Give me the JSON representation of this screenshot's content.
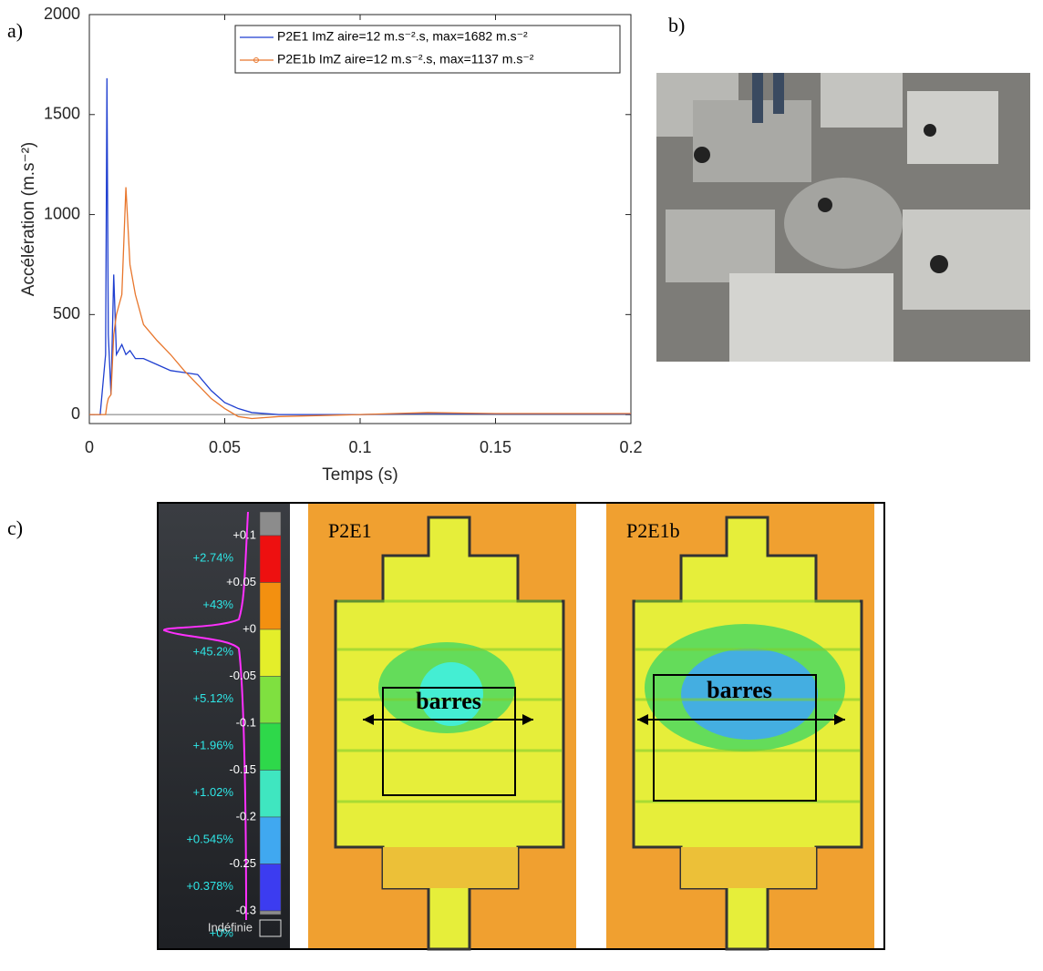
{
  "labels": {
    "a": "a)",
    "b": "b)",
    "c": "c)"
  },
  "chart_data": {
    "type": "line",
    "xlabel": "Temps (s)",
    "ylabel": "Accélération (m.s⁻²)",
    "x": [
      0,
      0.004,
      0.006,
      0.0065,
      0.007,
      0.008,
      0.009,
      0.01,
      0.012,
      0.0135,
      0.015,
      0.017,
      0.02,
      0.025,
      0.03,
      0.035,
      0.04,
      0.045,
      0.05,
      0.055,
      0.06,
      0.07,
      0.1,
      0.125,
      0.15,
      0.2
    ],
    "series": [
      {
        "name": "P2E1 ImZ     aire=12 m.s⁻².s, max=1682 m.s⁻²",
        "color": "#1f3fd0",
        "values": [
          0,
          0,
          300,
          1682,
          400,
          100,
          700,
          300,
          350,
          300,
          320,
          280,
          280,
          250,
          220,
          210,
          200,
          120,
          60,
          30,
          10,
          0,
          0,
          5,
          3,
          3
        ]
      },
      {
        "name": "P2E1b ImZ     aire=12 m.s⁻².s, max=1137 m.s⁻²",
        "color": "#e8762c",
        "values": [
          0,
          0,
          0,
          50,
          80,
          100,
          400,
          500,
          600,
          1137,
          750,
          600,
          450,
          370,
          300,
          220,
          150,
          80,
          30,
          -10,
          -20,
          -10,
          0,
          10,
          5,
          5
        ]
      }
    ],
    "xlim": [
      0,
      0.2
    ],
    "xticks": [
      0,
      0.05,
      0.1,
      0.15,
      0.2
    ],
    "ylim": [
      -45,
      2000
    ],
    "yticks": [
      0,
      500,
      1000,
      1500,
      2000
    ],
    "legend": "upper right"
  },
  "colormap": {
    "ticks": [
      "+0.1",
      "+0.05",
      "+0",
      "-0.05",
      "-0.1",
      "-0.15",
      "-0.2",
      "-0.25",
      "-0.3"
    ],
    "percentages": [
      "+2.74%",
      "+43%",
      "+45.2%",
      "+5.12%",
      "+1.96%",
      "+1.02%",
      "+0.545%",
      "+0.378%",
      "+0%"
    ],
    "colors": [
      "#8c8c8c",
      "#ee1010",
      "#f39010",
      "#e4ee2a",
      "#7fe040",
      "#2ed84a",
      "#3fe6c0",
      "#40a8f0",
      "#3c3cf0",
      "#8c8c8c"
    ],
    "undefined_label": "Indéfinie"
  },
  "maps": [
    {
      "title": "P2E1",
      "annotation": "barres"
    },
    {
      "title": "P2E1b",
      "annotation": "barres"
    }
  ]
}
